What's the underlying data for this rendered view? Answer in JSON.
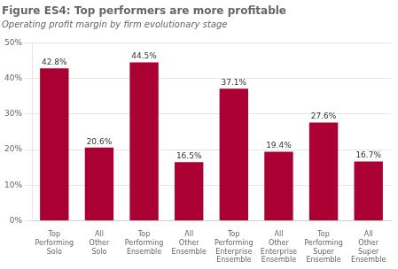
{
  "chart_data": {
    "type": "bar",
    "title": "Figure ES4: Top performers are more profitable",
    "subtitle": "Operating profit margin by firm evolutionary stage",
    "categories": [
      "Top\nPerforming\nSolo",
      "All\nOther\nSolo",
      "Top\nPerforming\nEnsemble",
      "All\nOther\nEnsemble",
      "Top\nPerforming\nEnterprise\nEnsemble",
      "All\nOther\nEnterprise\nEnsemble",
      "Top\nPerforming\nSuper\nEnsemble",
      "All\nOther\nSuper\nEnsemble"
    ],
    "values": [
      42.8,
      20.6,
      44.5,
      16.5,
      37.1,
      19.4,
      27.6,
      16.7
    ],
    "value_labels": [
      "42.8%",
      "20.6%",
      "44.5%",
      "16.5%",
      "37.1%",
      "19.4%",
      "27.6%",
      "16.7%"
    ],
    "data_labels": true,
    "color": "#aa0033",
    "ylim": [
      0,
      50
    ],
    "yticks": [
      {
        "value": 0,
        "label": "0%"
      },
      {
        "value": 10,
        "label": "10%"
      },
      {
        "value": 20,
        "label": "20%"
      },
      {
        "value": 30,
        "label": "30%"
      },
      {
        "value": 40,
        "label": "40%"
      },
      {
        "value": 50,
        "label": "50%"
      }
    ],
    "grid": true
  }
}
